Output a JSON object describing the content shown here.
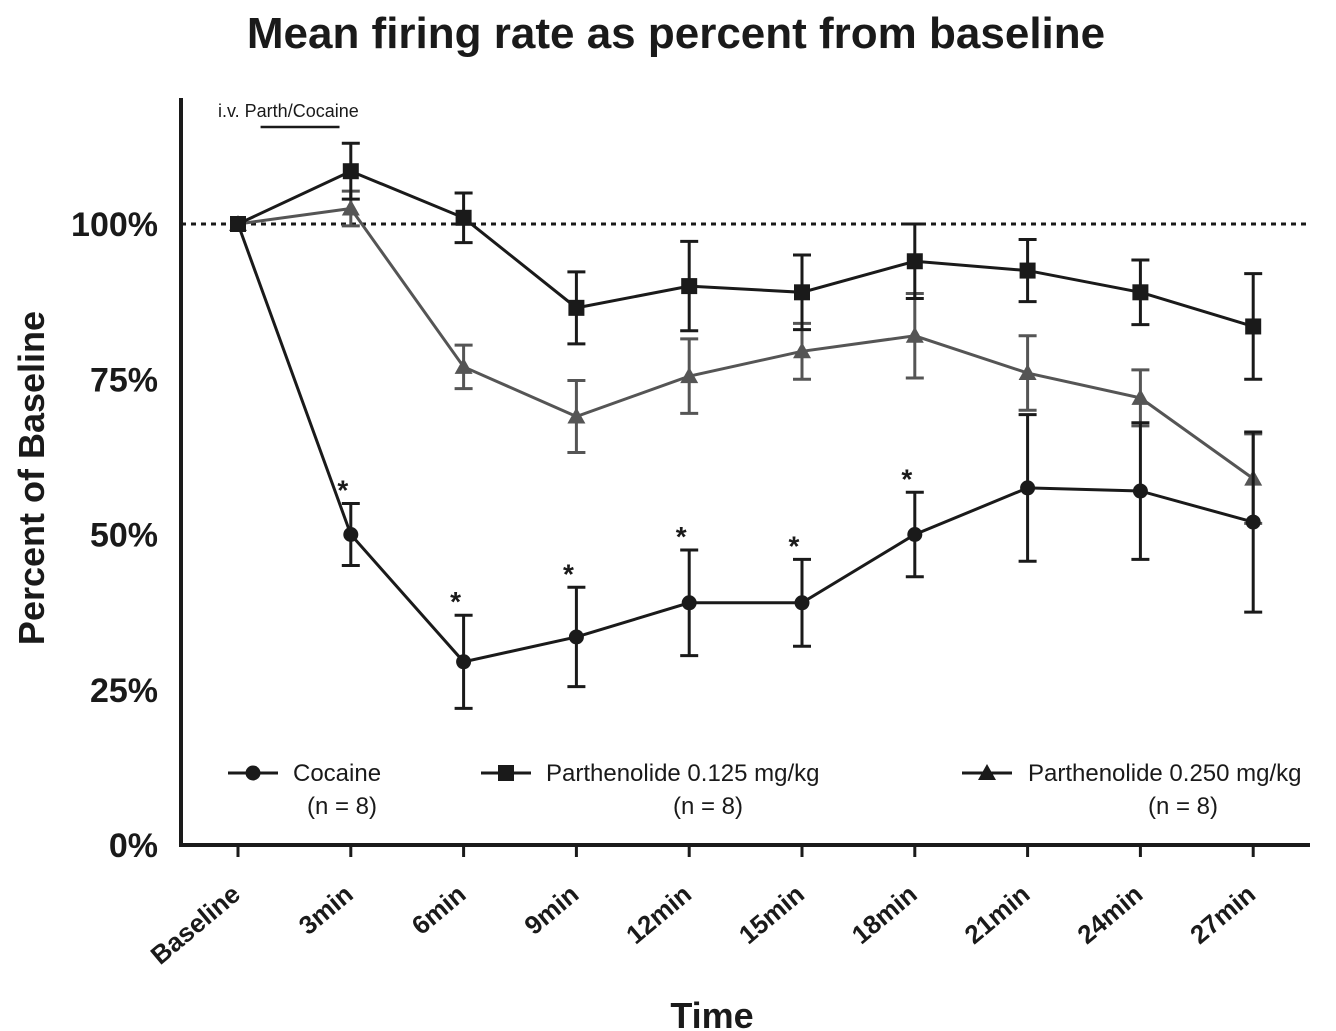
{
  "chart_data": {
    "type": "line",
    "title": "Mean firing rate as percent from baseline",
    "xlabel": "Time",
    "ylabel": "Percent of Baseline",
    "categories": [
      "Baseline",
      "3min",
      "6min",
      "9min",
      "12min",
      "15min",
      "18min",
      "21min",
      "24min",
      "27min"
    ],
    "y_ticks": [
      {
        "value": 0,
        "label": "0%"
      },
      {
        "value": 25,
        "label": "25%"
      },
      {
        "value": 50,
        "label": "50%"
      },
      {
        "value": 75,
        "label": "75%"
      },
      {
        "value": 100,
        "label": "100%"
      }
    ],
    "ylim": [
      0,
      120
    ],
    "reference_line": {
      "value": 100,
      "style": "dotted"
    },
    "annotation": {
      "text": "i.v. Parth/Cocaine",
      "x_from": 0.2,
      "x_to": 0.9
    },
    "significance_marker": "*",
    "grid": false,
    "legend_position": "bottom",
    "series": [
      {
        "name": "Cocaine",
        "n_label": "(n = 8)",
        "marker": "circle",
        "color": "#1a1a1a",
        "values": [
          100,
          50,
          29.5,
          33.5,
          39,
          39,
          50,
          57.5,
          57,
          52
        ],
        "errors": [
          0,
          5,
          7.5,
          8,
          8.5,
          7,
          6.8,
          11.8,
          11,
          14.5
        ],
        "significant": [
          false,
          true,
          true,
          true,
          true,
          true,
          true,
          false,
          false,
          false
        ]
      },
      {
        "name": "Parthenolide 0.125 mg/kg",
        "n_label": "(n = 8)",
        "marker": "square",
        "color": "#1a1a1a",
        "values": [
          100,
          108.5,
          101,
          86.5,
          90,
          89,
          94,
          92.5,
          89,
          83.5
        ],
        "errors": [
          0,
          4.5,
          4,
          5.8,
          7.2,
          6,
          6,
          5,
          5.2,
          8.5
        ],
        "significant": [
          false,
          false,
          false,
          false,
          false,
          false,
          false,
          false,
          false,
          false
        ]
      },
      {
        "name": "Parthenolide 0.250 mg/kg",
        "n_label": "(n = 8)",
        "marker": "triangle",
        "color": "#555555",
        "values": [
          100,
          102.5,
          77,
          69,
          75.5,
          79.5,
          82,
          76,
          72,
          59
        ],
        "errors": [
          0,
          2.8,
          3.5,
          5.8,
          6,
          4.5,
          6.8,
          6,
          4.5,
          7.2
        ],
        "significant": [
          false,
          false,
          false,
          false,
          false,
          false,
          false,
          false,
          false,
          false
        ]
      }
    ]
  }
}
